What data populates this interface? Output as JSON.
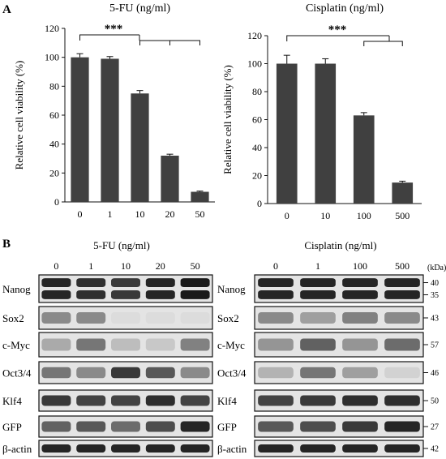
{
  "panel_a_label": "A",
  "panel_b_label": "B",
  "significance_label": "***",
  "chart_data": [
    {
      "type": "bar",
      "title": "5-FU (ng/ml)",
      "ylabel": "Relative cell viability (%)",
      "xlabel": "",
      "categories": [
        "0",
        "1",
        "10",
        "20",
        "50"
      ],
      "values": [
        100,
        99,
        75,
        32,
        7
      ],
      "errors": [
        2.5,
        1.5,
        2.0,
        1.0,
        0.5
      ],
      "ylim": [
        0,
        120
      ],
      "yticks": [
        "0",
        "20",
        "40",
        "60",
        "80",
        "100",
        "120"
      ],
      "grid": false,
      "significance": "***",
      "bar_color": "#404040"
    },
    {
      "type": "bar",
      "title": "Cisplatin (ng/ml)",
      "ylabel": "Relative cell viability (%)",
      "xlabel": "",
      "categories": [
        "0",
        "10",
        "100",
        "500"
      ],
      "values": [
        100,
        100,
        63,
        15
      ],
      "errors": [
        6.0,
        3.5,
        2.0,
        1.0
      ],
      "ylim": [
        0,
        120
      ],
      "yticks": [
        "0",
        "20",
        "40",
        "60",
        "80",
        "100",
        "120"
      ],
      "grid": false,
      "significance": "***",
      "bar_color": "#404040"
    }
  ],
  "blots": {
    "left": {
      "title": "5-FU (ng/ml)",
      "lanes": [
        "0",
        "1",
        "10",
        "20",
        "50"
      ],
      "proteins": [
        {
          "name": "Nanog",
          "bands": [
            2,
            2,
            2,
            2,
            2
          ],
          "intensity": [
            0.95,
            0.9,
            0.85,
            0.95,
            1.0
          ]
        },
        {
          "name": "Sox2",
          "bands": [
            1,
            1,
            1,
            1,
            1
          ],
          "intensity": [
            0.45,
            0.45,
            0.05,
            0.05,
            0.05
          ]
        },
        {
          "name": "c-Myc",
          "bands": [
            1,
            1,
            1,
            1,
            1
          ],
          "intensity": [
            0.3,
            0.55,
            0.2,
            0.15,
            0.5
          ]
        },
        {
          "name": "Oct3/4",
          "bands": [
            1,
            1,
            1,
            1,
            1
          ],
          "intensity": [
            0.55,
            0.45,
            0.85,
            0.7,
            0.45
          ]
        },
        {
          "name": "Klf4",
          "bands": [
            1,
            1,
            1,
            1,
            1
          ],
          "intensity": [
            0.85,
            0.8,
            0.8,
            0.9,
            0.8
          ]
        },
        {
          "name": "GFP",
          "bands": [
            1,
            1,
            1,
            1,
            1
          ],
          "intensity": [
            0.65,
            0.7,
            0.6,
            0.75,
            0.95
          ]
        },
        {
          "name": "β-actin",
          "bands": [
            1,
            1,
            1,
            1,
            1
          ],
          "intensity": [
            0.95,
            0.95,
            0.95,
            0.95,
            0.95
          ]
        }
      ]
    },
    "right": {
      "title": "Cisplatin (ng/ml)",
      "lanes": [
        "0",
        "1",
        "100",
        "500"
      ],
      "unit_label": "(kDa)",
      "proteins": [
        {
          "name": "Nanog",
          "bands": [
            2,
            2,
            2,
            2
          ],
          "intensity": [
            0.95,
            0.95,
            0.95,
            0.95
          ],
          "kda": [
            "40",
            "35"
          ]
        },
        {
          "name": "Sox2",
          "bands": [
            1,
            1,
            1,
            1
          ],
          "intensity": [
            0.45,
            0.35,
            0.5,
            0.45
          ],
          "kda": [
            "43"
          ]
        },
        {
          "name": "c-Myc",
          "bands": [
            1,
            1,
            1,
            1
          ],
          "intensity": [
            0.4,
            0.65,
            0.4,
            0.6
          ],
          "kda": [
            "57"
          ]
        },
        {
          "name": "Oct3/4",
          "bands": [
            1,
            1,
            1,
            1
          ],
          "intensity": [
            0.25,
            0.55,
            0.35,
            0.1
          ],
          "kda": [
            "46"
          ]
        },
        {
          "name": "Klf4",
          "bands": [
            1,
            1,
            1,
            1
          ],
          "intensity": [
            0.8,
            0.85,
            0.9,
            0.9
          ],
          "kda": [
            "50"
          ]
        },
        {
          "name": "GFP",
          "bands": [
            1,
            1,
            1,
            1
          ],
          "intensity": [
            0.7,
            0.75,
            0.85,
            0.95
          ],
          "kda": [
            "27"
          ]
        },
        {
          "name": "β-actin",
          "bands": [
            1,
            1,
            1,
            1
          ],
          "intensity": [
            0.95,
            0.95,
            0.95,
            0.95
          ],
          "kda": [
            "42"
          ]
        }
      ]
    }
  }
}
